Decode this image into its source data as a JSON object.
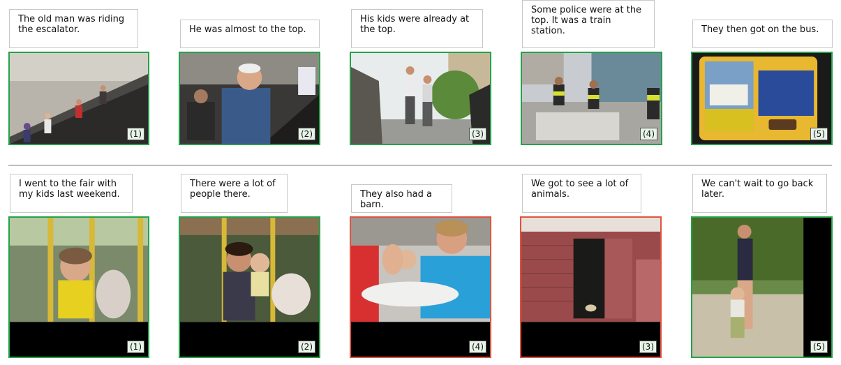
{
  "top_row": [
    {
      "caption": "The old man was riding the escalator.",
      "order": "(1)",
      "status": "correct"
    },
    {
      "caption": "He was almost to the top.",
      "order": "(2)",
      "status": "correct"
    },
    {
      "caption": "His kids were already at the top.",
      "order": "(3)",
      "status": "correct"
    },
    {
      "caption": "Some police were at the top. It was a train station.",
      "order": "(4)",
      "status": "correct"
    },
    {
      "caption": "They then got on the bus.",
      "order": "(5)",
      "status": "correct"
    }
  ],
  "bottom_row": [
    {
      "caption": "I went to the fair with my kids last weekend.",
      "order": "(1)",
      "status": "correct"
    },
    {
      "caption": "There were a lot of people there.",
      "order": "(2)",
      "status": "correct"
    },
    {
      "caption": "They also had a barn.",
      "order": "(4)",
      "status": "incorrect"
    },
    {
      "caption": "We got to see a lot of animals.",
      "order": "(3)",
      "status": "incorrect"
    },
    {
      "caption": "We can't wait to go back later.",
      "order": "(5)",
      "status": "correct"
    }
  ],
  "colors": {
    "correct": "#22a34a",
    "incorrect": "#e0533f",
    "divider": "#bdbdbd"
  }
}
